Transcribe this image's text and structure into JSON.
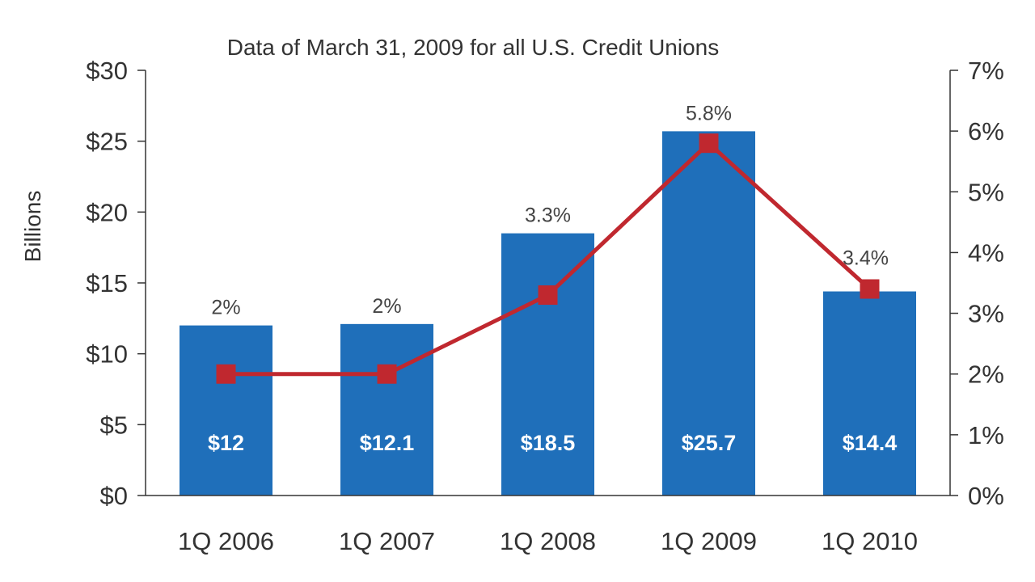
{
  "chart_data": {
    "type": "bar",
    "subtitle": "Data of March 31, 2009 for all U.S. Credit Unions",
    "ylabel": "Billions",
    "categories": [
      "1Q 2006",
      "1Q 2007",
      "1Q 2008",
      "1Q 2009",
      "1Q 2010"
    ],
    "series": [
      {
        "type": "bar",
        "values": [
          12,
          12.1,
          18.5,
          25.7,
          14.4
        ],
        "value_labels": [
          "$12",
          "$12.1",
          "$18.5",
          "$25.7",
          "$14.4"
        ],
        "color": "#1f6fba",
        "axis": "left"
      },
      {
        "type": "line",
        "values": [
          2,
          2,
          3.3,
          5.8,
          3.4
        ],
        "value_labels": [
          "2%",
          "2%",
          "3.3%",
          "5.8%",
          "3.4%"
        ],
        "color": "#c0282f",
        "axis": "right"
      }
    ],
    "ylim_left": [
      0,
      30
    ],
    "ylim_right": [
      0,
      7
    ],
    "left_ticks": [
      {
        "value": 0,
        "label": "$0"
      },
      {
        "value": 5,
        "label": "$5"
      },
      {
        "value": 10,
        "label": "$10"
      },
      {
        "value": 15,
        "label": "$15"
      },
      {
        "value": 20,
        "label": "$20"
      },
      {
        "value": 25,
        "label": "$25"
      },
      {
        "value": 30,
        "label": "$30"
      }
    ],
    "right_ticks": [
      {
        "value": 0,
        "label": "0%"
      },
      {
        "value": 1,
        "label": "1%"
      },
      {
        "value": 2,
        "label": "2%"
      },
      {
        "value": 3,
        "label": "3%"
      },
      {
        "value": 4,
        "label": "4%"
      },
      {
        "value": 5,
        "label": "5%"
      },
      {
        "value": 6,
        "label": "6%"
      },
      {
        "value": 7,
        "label": "7%"
      }
    ],
    "grid": false,
    "legend": "none"
  }
}
